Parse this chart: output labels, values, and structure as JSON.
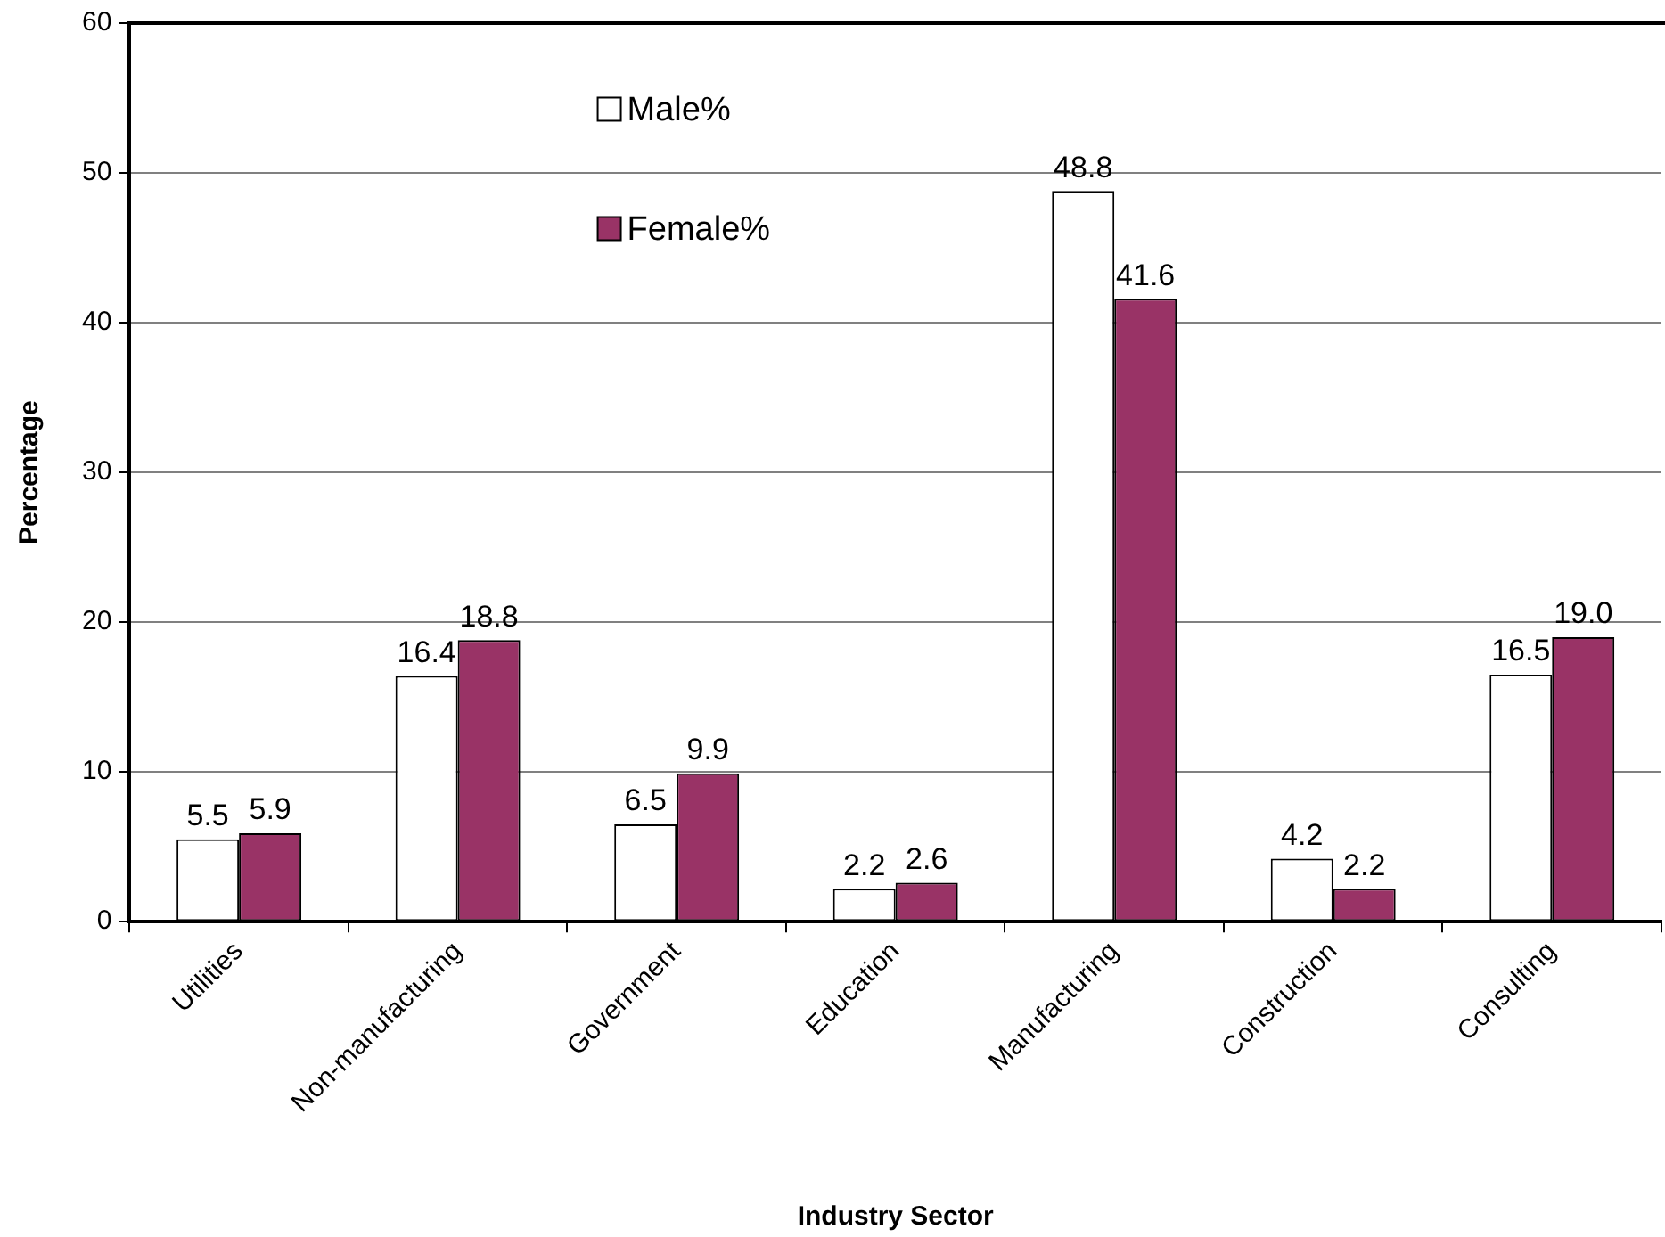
{
  "chart_data": {
    "type": "bar",
    "xlabel": "Industry Sector",
    "ylabel": "Percentage",
    "categories": [
      "Utilities",
      "Non-manufacturing",
      "Government",
      "Education",
      "Manufacturing",
      "Construction",
      "Consulting"
    ],
    "series": [
      {
        "name": "Male%",
        "color": "#ffffff",
        "values": [
          5.5,
          16.4,
          6.5,
          2.2,
          48.8,
          4.2,
          16.5
        ],
        "value_labels": [
          "5.5",
          "16.4",
          "6.5",
          "2.2",
          "48.8",
          "4.2",
          "16.5"
        ]
      },
      {
        "name": "Female%",
        "color": "#993366",
        "values": [
          5.9,
          18.8,
          9.9,
          2.6,
          41.6,
          2.2,
          19.0
        ],
        "value_labels": [
          "5.9",
          "18.8",
          "9.9",
          "2.6",
          "41.6",
          "2.2",
          "19.0"
        ]
      }
    ],
    "ylim": [
      0,
      60
    ],
    "yticks": [
      0,
      10,
      20,
      30,
      40,
      50,
      60
    ],
    "grid": "y",
    "legend": "top"
  }
}
